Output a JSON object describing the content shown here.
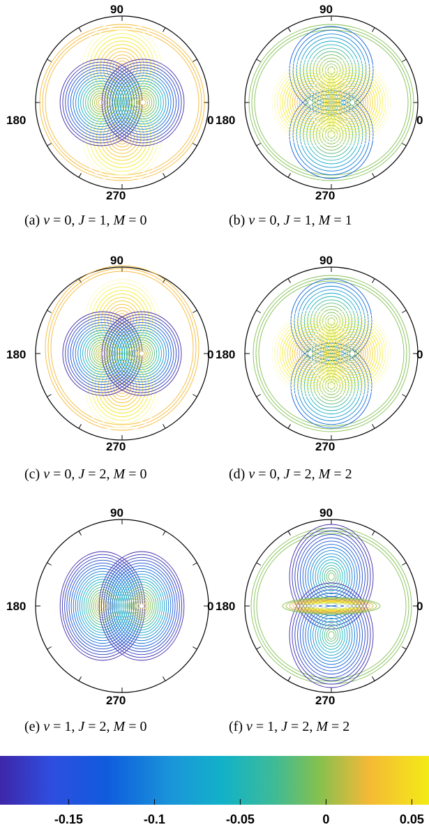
{
  "chart_data": {
    "type": "contour",
    "layout": "3 rows x 2 columns of polar contour plots with a shared horizontal colorbar",
    "angle_labels": {
      "top": "90",
      "left": "180",
      "right": "0",
      "bottom": "270"
    },
    "panels": [
      {
        "id": "a",
        "caption_prefix": "(a)",
        "v": "0",
        "J": "1",
        "M": "0"
      },
      {
        "id": "b",
        "caption_prefix": "(b)",
        "v": "0",
        "J": "1",
        "M": "1"
      },
      {
        "id": "c",
        "caption_prefix": "(c)",
        "v": "0",
        "J": "2",
        "M": "0"
      },
      {
        "id": "d",
        "caption_prefix": "(d)",
        "v": "0",
        "J": "2",
        "M": "2"
      },
      {
        "id": "e",
        "caption_prefix": "(e)",
        "v": "1",
        "J": "2",
        "M": "0"
      },
      {
        "id": "f",
        "caption_prefix": "(f)",
        "v": "1",
        "J": "2",
        "M": "2"
      }
    ],
    "colorbar": {
      "range": [
        -0.19,
        0.06
      ],
      "ticks": [
        -0.15,
        -0.1,
        -0.05,
        0,
        0.05
      ],
      "tick_labels": [
        "-0.15",
        "-0.1",
        "-0.05",
        "0",
        "0.05"
      ],
      "colormap": "parula"
    }
  },
  "symbols": {
    "v": "ν",
    "J": "J",
    "M": "M",
    "eq": " = ",
    "sep": ", "
  },
  "colors": {
    "deep": "#3e26a8",
    "blue": "#0f5cdd",
    "teal": "#12b2c8",
    "green": "#82c050",
    "orange": "#f5b936",
    "yellow": "#f3eb16"
  }
}
